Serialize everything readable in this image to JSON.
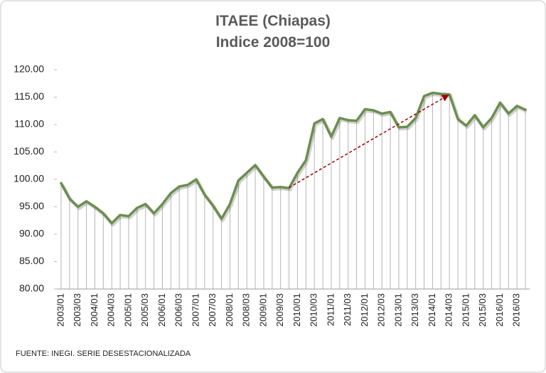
{
  "chart_data": {
    "type": "line",
    "title": "ITAEE (Chiapas)",
    "subtitle": "Indice 2008=100",
    "note": "FUENTE:  INEGI. SERIE  DESESTACIONALIZADA",
    "categories": [
      "2003/01",
      null,
      "2003/03",
      null,
      "2004/01",
      null,
      "2004/03",
      null,
      "2005/01",
      null,
      "2005/03",
      null,
      "2006/01",
      null,
      "2006/03",
      null,
      "2007/01",
      null,
      "2007/03",
      null,
      "2008/01",
      null,
      "2008/03",
      null,
      "2009/01",
      null,
      "2009/03",
      null,
      "2010/01",
      null,
      "2010/03",
      null,
      "2011/01",
      null,
      "2011/03",
      null,
      "2012/01",
      null,
      "2012/03",
      null,
      "2013/01",
      null,
      "2013/03",
      null,
      "2014/01",
      null,
      "2014/03",
      null,
      "2015/01",
      null,
      "2015/03",
      null,
      "2016/01",
      null,
      "2016/03",
      null
    ],
    "series": [
      {
        "color": "#6b8e4e",
        "values": [
          99.3,
          96.5,
          95.0,
          96.0,
          95.0,
          93.8,
          92.0,
          93.5,
          93.3,
          94.8,
          95.5,
          93.8,
          95.5,
          97.5,
          98.7,
          99.0,
          100.0,
          97.2,
          95.2,
          92.8,
          95.5,
          99.8,
          101.2,
          102.6,
          100.5,
          98.5,
          98.6,
          98.4,
          101.2,
          103.5,
          110.2,
          111.0,
          107.8,
          111.2,
          110.8,
          110.7,
          112.8,
          112.6,
          112.0,
          112.3,
          109.5,
          109.6,
          111.2,
          115.2,
          115.8,
          115.6,
          115.5,
          111.0,
          109.8,
          111.7,
          109.5,
          111.2,
          114.0,
          112.0,
          113.4,
          112.7
        ]
      }
    ],
    "ylim": [
      80,
      120
    ],
    "yticks": [
      {
        "value": 80,
        "label": "80.00"
      },
      {
        "value": 85,
        "label": "85.00"
      },
      {
        "value": 90,
        "label": "90.00"
      },
      {
        "value": 95,
        "label": "95.00"
      },
      {
        "value": 100,
        "label": "100.00"
      },
      {
        "value": 105,
        "label": "105.00"
      },
      {
        "value": 110,
        "label": "110.00"
      },
      {
        "value": 115,
        "label": "115.00"
      },
      {
        "value": 120,
        "label": "120.00"
      }
    ],
    "drop_lines": true
  }
}
